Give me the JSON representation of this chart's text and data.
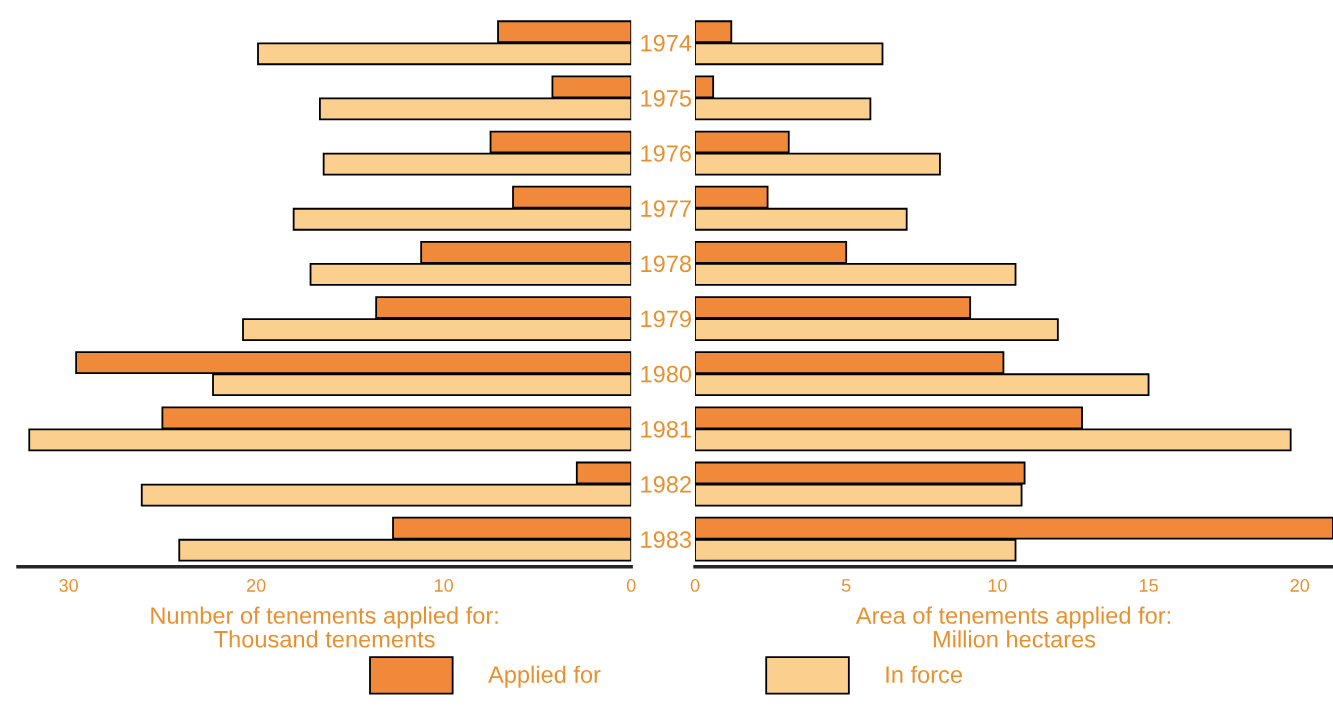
{
  "chart_data": [
    {
      "type": "bar",
      "orientation": "horizontal",
      "xlabel": "Number of tenements applied for:\nThousand tenements",
      "categories": [
        "1974",
        "1975",
        "1976",
        "1977",
        "1978",
        "1979",
        "1980",
        "1981",
        "1982",
        "1983"
      ],
      "series": [
        {
          "name": "Applied for",
          "color": "#f08a3a",
          "values": [
            7.1,
            4.2,
            7.5,
            6.3,
            11.2,
            13.6,
            29.6,
            25.0,
            2.9,
            12.7
          ]
        },
        {
          "name": "In force",
          "color": "#fbcf8e",
          "values": [
            19.9,
            16.6,
            16.4,
            18.0,
            17.1,
            20.7,
            22.3,
            32.1,
            26.1,
            24.1
          ]
        }
      ],
      "xlim": [
        32.7,
        0
      ],
      "xticks": [
        30,
        20,
        10,
        0
      ],
      "legend": "bottom"
    },
    {
      "type": "bar",
      "orientation": "horizontal",
      "xlabel": "Area of tenements applied for:\nMillion hectares",
      "categories": [
        "1974",
        "1975",
        "1976",
        "1977",
        "1978",
        "1979",
        "1980",
        "1981",
        "1982",
        "1983"
      ],
      "series": [
        {
          "color": "#f08a3a",
          "values": [
            1.2,
            0.6,
            3.1,
            2.4,
            5.0,
            9.1,
            10.2,
            12.8,
            10.9,
            21.1
          ]
        },
        {
          "color": "#fbcf8e",
          "values": [
            6.2,
            5.8,
            8.1,
            7.0,
            10.6,
            12.0,
            15.0,
            19.7,
            10.8,
            10.6
          ]
        }
      ],
      "xlim": [
        0,
        21.1
      ],
      "xticks": [
        0,
        5,
        10,
        15,
        20
      ],
      "tick_labels": "x"
    }
  ]
}
